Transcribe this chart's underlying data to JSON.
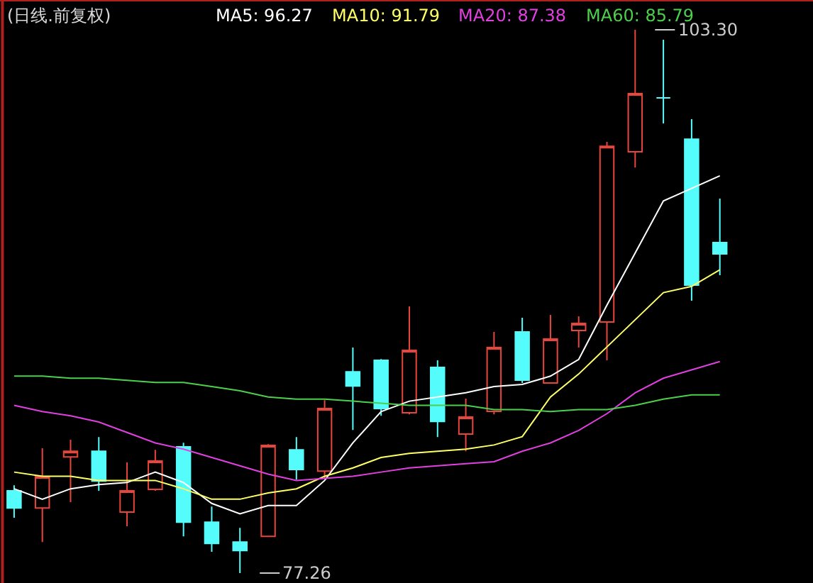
{
  "chart_data": {
    "type": "candlestick",
    "title": "(日线.前复权)",
    "categories": [
      null,
      null,
      null,
      null,
      null,
      null,
      null,
      null,
      null,
      null,
      null,
      null,
      null,
      null,
      null,
      null,
      null,
      null,
      null,
      null,
      null,
      null,
      null,
      null,
      null,
      null
    ],
    "ohlc": [
      [
        81.2,
        81.47,
        79.91,
        80.38
      ],
      [
        80.38,
        83.24,
        78.75,
        81.88
      ],
      [
        82.83,
        83.65,
        80.66,
        83.1
      ],
      [
        83.1,
        83.78,
        81.2,
        81.67
      ],
      [
        80.18,
        82.56,
        79.5,
        81.2
      ],
      [
        81.27,
        83.17,
        81.2,
        82.63
      ],
      [
        83.31,
        83.51,
        79.02,
        79.7
      ],
      [
        79.7,
        80.45,
        78.28,
        78.68
      ],
      [
        78.75,
        79.43,
        77.26,
        78.34
      ],
      [
        79.02,
        83.44,
        79.02,
        83.38
      ],
      [
        83.17,
        83.78,
        81.74,
        82.22
      ],
      [
        82.15,
        85.55,
        81.81,
        85.15
      ],
      [
        86.91,
        88.07,
        84.12,
        86.23
      ],
      [
        87.46,
        87.52,
        84.8,
        85.15
      ],
      [
        84.94,
        90.04,
        84.87,
        87.93
      ],
      [
        87.12,
        87.46,
        83.78,
        84.53
      ],
      [
        83.92,
        85.62,
        83.1,
        84.74
      ],
      [
        85.01,
        88.82,
        84.87,
        88.07
      ],
      [
        88.82,
        89.5,
        86.37,
        86.51
      ],
      [
        86.37,
        89.63,
        86.37,
        88.48
      ],
      [
        88.89,
        89.57,
        88.07,
        89.23
      ],
      [
        89.29,
        97.93,
        87.46,
        97.72
      ],
      [
        97.45,
        103.3,
        96.7,
        100.24
      ],
      [
        100.04,
        102.82,
        98.81,
        100.04
      ],
      [
        98.06,
        99.02,
        90.31,
        91.06
      ],
      [
        93.1,
        95.21,
        91.54,
        92.56
      ]
    ],
    "colors": [
      "#54fcfc",
      "#e8453c",
      "#e8453c",
      "#54fcfc",
      "#e8453c",
      "#e8453c",
      "#54fcfc",
      "#54fcfc",
      "#54fcfc",
      "#e8453c",
      "#54fcfc",
      "#e8453c",
      "#54fcfc",
      "#54fcfc",
      "#e8453c",
      "#54fcfc",
      "#e8453c",
      "#e8453c",
      "#54fcfc",
      "#e8453c",
      "#e8453c",
      "#e8453c",
      "#e8453c",
      "#54fcfc",
      "#54fcfc",
      "#54fcfc"
    ],
    "series": [
      {
        "name": "MA5: 96.27",
        "type": "line",
        "color": "#ffffff",
        "values": [
          81.3,
          80.8,
          81.3,
          81.5,
          81.6,
          82.1,
          81.6,
          80.6,
          80.1,
          80.5,
          80.5,
          81.7,
          83.5,
          85.0,
          85.5,
          85.7,
          85.9,
          86.2,
          86.3,
          86.7,
          87.5,
          90.1,
          92.6,
          95.1,
          95.7,
          96.3
        ]
      },
      {
        "name": "MA10: 91.79",
        "type": "line",
        "color": "#ffff66",
        "values": [
          82.1,
          81.9,
          81.9,
          81.7,
          81.7,
          81.7,
          81.3,
          80.8,
          80.8,
          81.1,
          81.3,
          81.9,
          82.3,
          82.8,
          83.0,
          83.1,
          83.2,
          83.4,
          83.8,
          85.7,
          86.8,
          88.1,
          89.4,
          90.7,
          91.0,
          91.8
        ]
      },
      {
        "name": "MA20: 87.38",
        "type": "line",
        "color": "#e040e0",
        "values": [
          85.3,
          85.0,
          84.8,
          84.5,
          84.0,
          83.5,
          83.2,
          82.8,
          82.4,
          82.0,
          81.7,
          81.8,
          81.9,
          82.1,
          82.3,
          82.4,
          82.5,
          82.6,
          83.1,
          83.5,
          84.1,
          84.9,
          85.9,
          86.6,
          87.0,
          87.4
        ]
      },
      {
        "name": "MA60: 85.79",
        "type": "line",
        "color": "#4cd04c",
        "values": [
          86.7,
          86.7,
          86.6,
          86.6,
          86.5,
          86.4,
          86.4,
          86.2,
          86.0,
          85.7,
          85.6,
          85.6,
          85.5,
          85.4,
          85.3,
          85.3,
          85.3,
          85.1,
          85.1,
          85.0,
          85.1,
          85.1,
          85.3,
          85.6,
          85.8,
          85.8
        ]
      }
    ],
    "annotations": [
      "103.30",
      "77.26"
    ],
    "legend": "top",
    "marker": "none"
  }
}
